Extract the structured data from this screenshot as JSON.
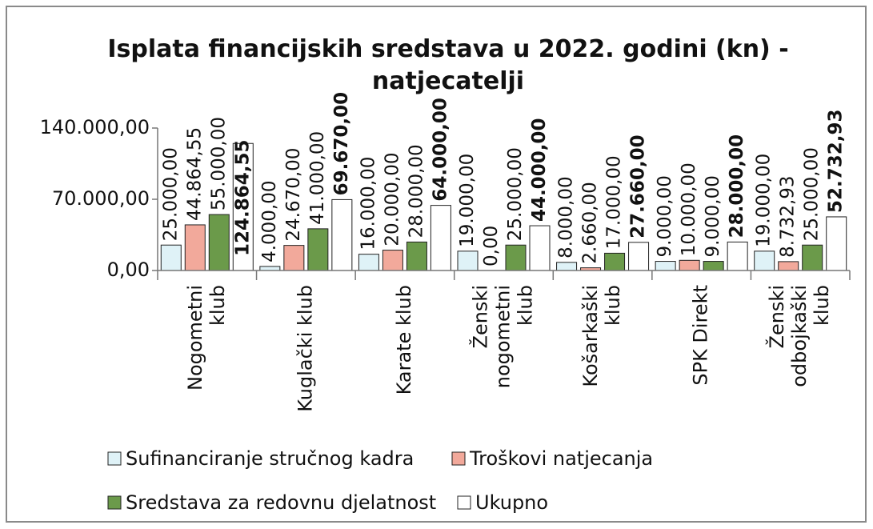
{
  "chart_data": {
    "type": "bar",
    "title": "Isplata financijskih sredstava u 2022. godini (kn) - natjecatelji",
    "categories": [
      "Nogometni klub",
      "Kuglački klub",
      "Karate klub",
      "Ženski nogometni klub",
      "Košarkaški klub",
      "SPK Direkt",
      "Ženski odbojkaški klub"
    ],
    "series": [
      {
        "name": "Sufinanciranje stručnog kadra",
        "color": "#dff2f7",
        "values": [
          25000,
          4000,
          16000,
          19000,
          8000,
          9000,
          19000
        ],
        "value_labels": [
          "25.000,00",
          "4.000,00",
          "16.000,00",
          "19.000,00",
          "8.000,00",
          "9.000,00",
          "19.000,00"
        ]
      },
      {
        "name": "Troškovi natjecanja",
        "color": "#f2a99b",
        "values": [
          44864.55,
          24670,
          20000,
          0,
          2660,
          10000,
          8732.93
        ],
        "value_labels": [
          "44.864,55",
          "24.670,00",
          "20.000,00",
          "0,00",
          "2.660,00",
          "10.000,00",
          "8.732,93"
        ]
      },
      {
        "name": "Sredstava za redovnu djelatnost",
        "color": "#6b9a4a",
        "values": [
          55000,
          41000,
          28000,
          25000,
          17000,
          9000,
          25000
        ],
        "value_labels": [
          "55.000,00",
          "41.000,00",
          "28.000,00",
          "25.000,00",
          "17.000,00",
          "9.000,00",
          "25.000,00"
        ]
      },
      {
        "name": "Ukupno",
        "color": "#ffffff",
        "values": [
          124864.55,
          69670,
          64000,
          44000,
          27660,
          28000,
          52732.93
        ],
        "value_labels": [
          "124.864,55",
          "69.670,00",
          "64.000,00",
          "44.000,00",
          "27.660,00",
          "28.000,00",
          "52.732,93"
        ]
      }
    ],
    "ylim": [
      0,
      140000
    ],
    "yticks": [
      {
        "value": 0,
        "label": "0,00"
      },
      {
        "value": 70000,
        "label": "70.000,00"
      },
      {
        "value": 140000,
        "label": "140.000,00"
      }
    ],
    "grid": false,
    "legend": "bottom"
  }
}
